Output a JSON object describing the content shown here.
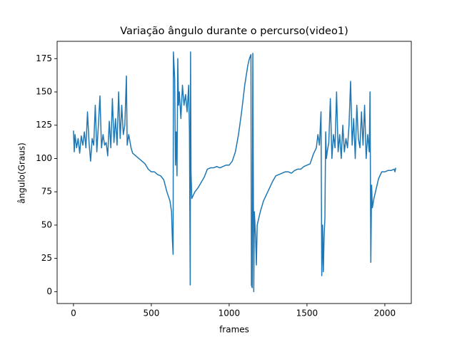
{
  "chart_data": {
    "type": "line",
    "title": "Variação ângulo durante o percurso(video1)",
    "x_label": "frames",
    "y_label": "ângulo(Graus)",
    "xlim": [
      -105,
      2170
    ],
    "ylim": [
      -8.9,
      188
    ],
    "xticks": [
      0,
      500,
      1000,
      1500,
      2000
    ],
    "yticks": [
      0,
      25,
      50,
      75,
      100,
      125,
      150,
      175
    ],
    "grid": false,
    "x": [
      0,
      5,
      10,
      20,
      30,
      40,
      50,
      60,
      70,
      80,
      90,
      100,
      110,
      120,
      130,
      140,
      150,
      160,
      170,
      180,
      190,
      200,
      210,
      220,
      230,
      240,
      250,
      260,
      270,
      280,
      290,
      300,
      310,
      320,
      330,
      340,
      345,
      355,
      370,
      380,
      400,
      420,
      440,
      460,
      480,
      500,
      520,
      540,
      560,
      580,
      600,
      620,
      630,
      635,
      640,
      642,
      650,
      655,
      660,
      665,
      670,
      675,
      680,
      690,
      700,
      710,
      720,
      730,
      740,
      745,
      750,
      752,
      755,
      760,
      780,
      800,
      820,
      840,
      860,
      880,
      900,
      920,
      940,
      960,
      980,
      1000,
      1020,
      1040,
      1060,
      1080,
      1100,
      1120,
      1130,
      1140,
      1143,
      1148,
      1152,
      1158,
      1162,
      1170,
      1175,
      1180,
      1200,
      1220,
      1240,
      1260,
      1280,
      1300,
      1320,
      1340,
      1360,
      1380,
      1400,
      1420,
      1440,
      1460,
      1480,
      1500,
      1520,
      1540,
      1560,
      1570,
      1580,
      1590,
      1595,
      1600,
      1605,
      1610,
      1615,
      1620,
      1625,
      1630,
      1640,
      1650,
      1660,
      1670,
      1680,
      1690,
      1700,
      1710,
      1720,
      1730,
      1740,
      1750,
      1760,
      1770,
      1780,
      1790,
      1800,
      1810,
      1820,
      1830,
      1840,
      1850,
      1860,
      1870,
      1880,
      1890,
      1900,
      1905,
      1910,
      1915,
      1920,
      1930,
      1940,
      1960,
      1980,
      2000,
      2020,
      2040,
      2060,
      2065,
      2070
    ],
    "series": [
      {
        "color": "#1f77b4",
        "values": [
          121,
          105,
          118,
          108,
          115,
          104,
          117,
          110,
          120,
          108,
          135,
          112,
          98,
          115,
          110,
          140,
          105,
          125,
          147,
          108,
          118,
          110,
          112,
          102,
          128,
          108,
          145,
          112,
          130,
          110,
          150,
          115,
          140,
          118,
          125,
          162,
          110,
          118,
          108,
          104,
          102,
          100,
          98,
          96,
          92,
          90,
          90,
          88,
          87,
          84,
          75,
          68,
          60,
          40,
          28,
          180,
          160,
          95,
          120,
          87,
          175,
          140,
          150,
          130,
          155,
          140,
          148,
          135,
          155,
          120,
          5,
          180,
          90,
          70,
          75,
          78,
          82,
          86,
          92,
          93,
          93,
          94,
          93,
          94,
          95,
          95,
          98,
          105,
          118,
          135,
          155,
          170,
          175,
          178,
          5,
          3,
          179,
          0,
          60,
          40,
          20,
          50,
          60,
          68,
          73,
          78,
          83,
          87,
          88,
          89,
          90,
          90,
          89,
          91,
          92,
          92,
          94,
          95,
          96,
          103,
          108,
          118,
          110,
          135,
          12,
          50,
          15,
          42,
          55,
          120,
          100,
          105,
          112,
          145,
          100,
          118,
          108,
          150,
          105,
          118,
          100,
          125,
          105,
          115,
          108,
          125,
          158,
          110,
          130,
          100,
          140,
          115,
          108,
          135,
          110,
          140,
          100,
          118,
          105,
          150,
          22,
          80,
          63,
          70,
          75,
          85,
          90,
          90,
          91,
          91,
          92,
          90,
          93
        ]
      }
    ]
  }
}
